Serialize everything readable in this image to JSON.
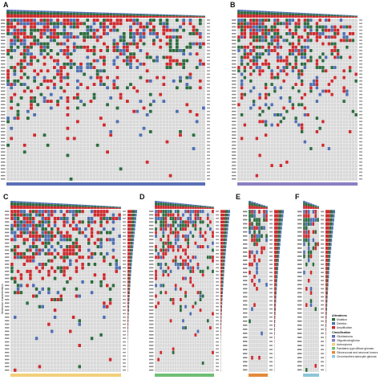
{
  "colors": {
    "mutation": "#2e6b3f",
    "deletion": "#4f6fb0",
    "amplification": "#cc2b2f",
    "none": "#d9d9d9",
    "gbm": "#5b6fb5",
    "oligo": "#8a7fc2",
    "astro": "#f2cf7a",
    "pediatric": "#6fbf73",
    "glioneuronal": "#e38a3a",
    "circumscribed": "#8cc6d8"
  },
  "legend": {
    "alterations_title": "Alterations",
    "alterations": [
      "Mutation",
      "Deletion",
      "Amplification"
    ],
    "classification_title": "Classification",
    "classes": [
      "Glioblastoma",
      "Oligodendroglioma",
      "Astrocytoma",
      "Paediatric-type diffuse gliomas",
      "Glioneuronal and neuronal tumors",
      "Circumscribed astrocytic gliomas"
    ]
  },
  "y_axis_label": "Molecular characteristics",
  "chart_data": [
    {
      "panel": "A",
      "type": "heatmap",
      "class": "Glioblastoma",
      "genes": 48,
      "samples": 60,
      "classification_color": "gbm"
    },
    {
      "panel": "B",
      "type": "heatmap",
      "class": "Oligodendroglioma",
      "genes": 48,
      "samples": 40,
      "classification_color": "oligo"
    },
    {
      "panel": "C",
      "type": "heatmap",
      "class": "Astrocytoma",
      "genes": 46,
      "samples": 36,
      "classification_color": "astro"
    },
    {
      "panel": "D",
      "type": "heatmap",
      "class": "Paediatric-type diffuse gliomas",
      "genes": 46,
      "samples": 24,
      "classification_color": "pediatric"
    },
    {
      "panel": "E",
      "type": "heatmap",
      "class": "Glioneuronal and neuronal tumors",
      "genes": 40,
      "samples": 8,
      "classification_color": "glioneuronal"
    },
    {
      "panel": "F",
      "type": "heatmap",
      "class": "Circumscribed astrocytic gliomas",
      "genes": 40,
      "samples": 7,
      "classification_color": "circumscribed"
    }
  ]
}
